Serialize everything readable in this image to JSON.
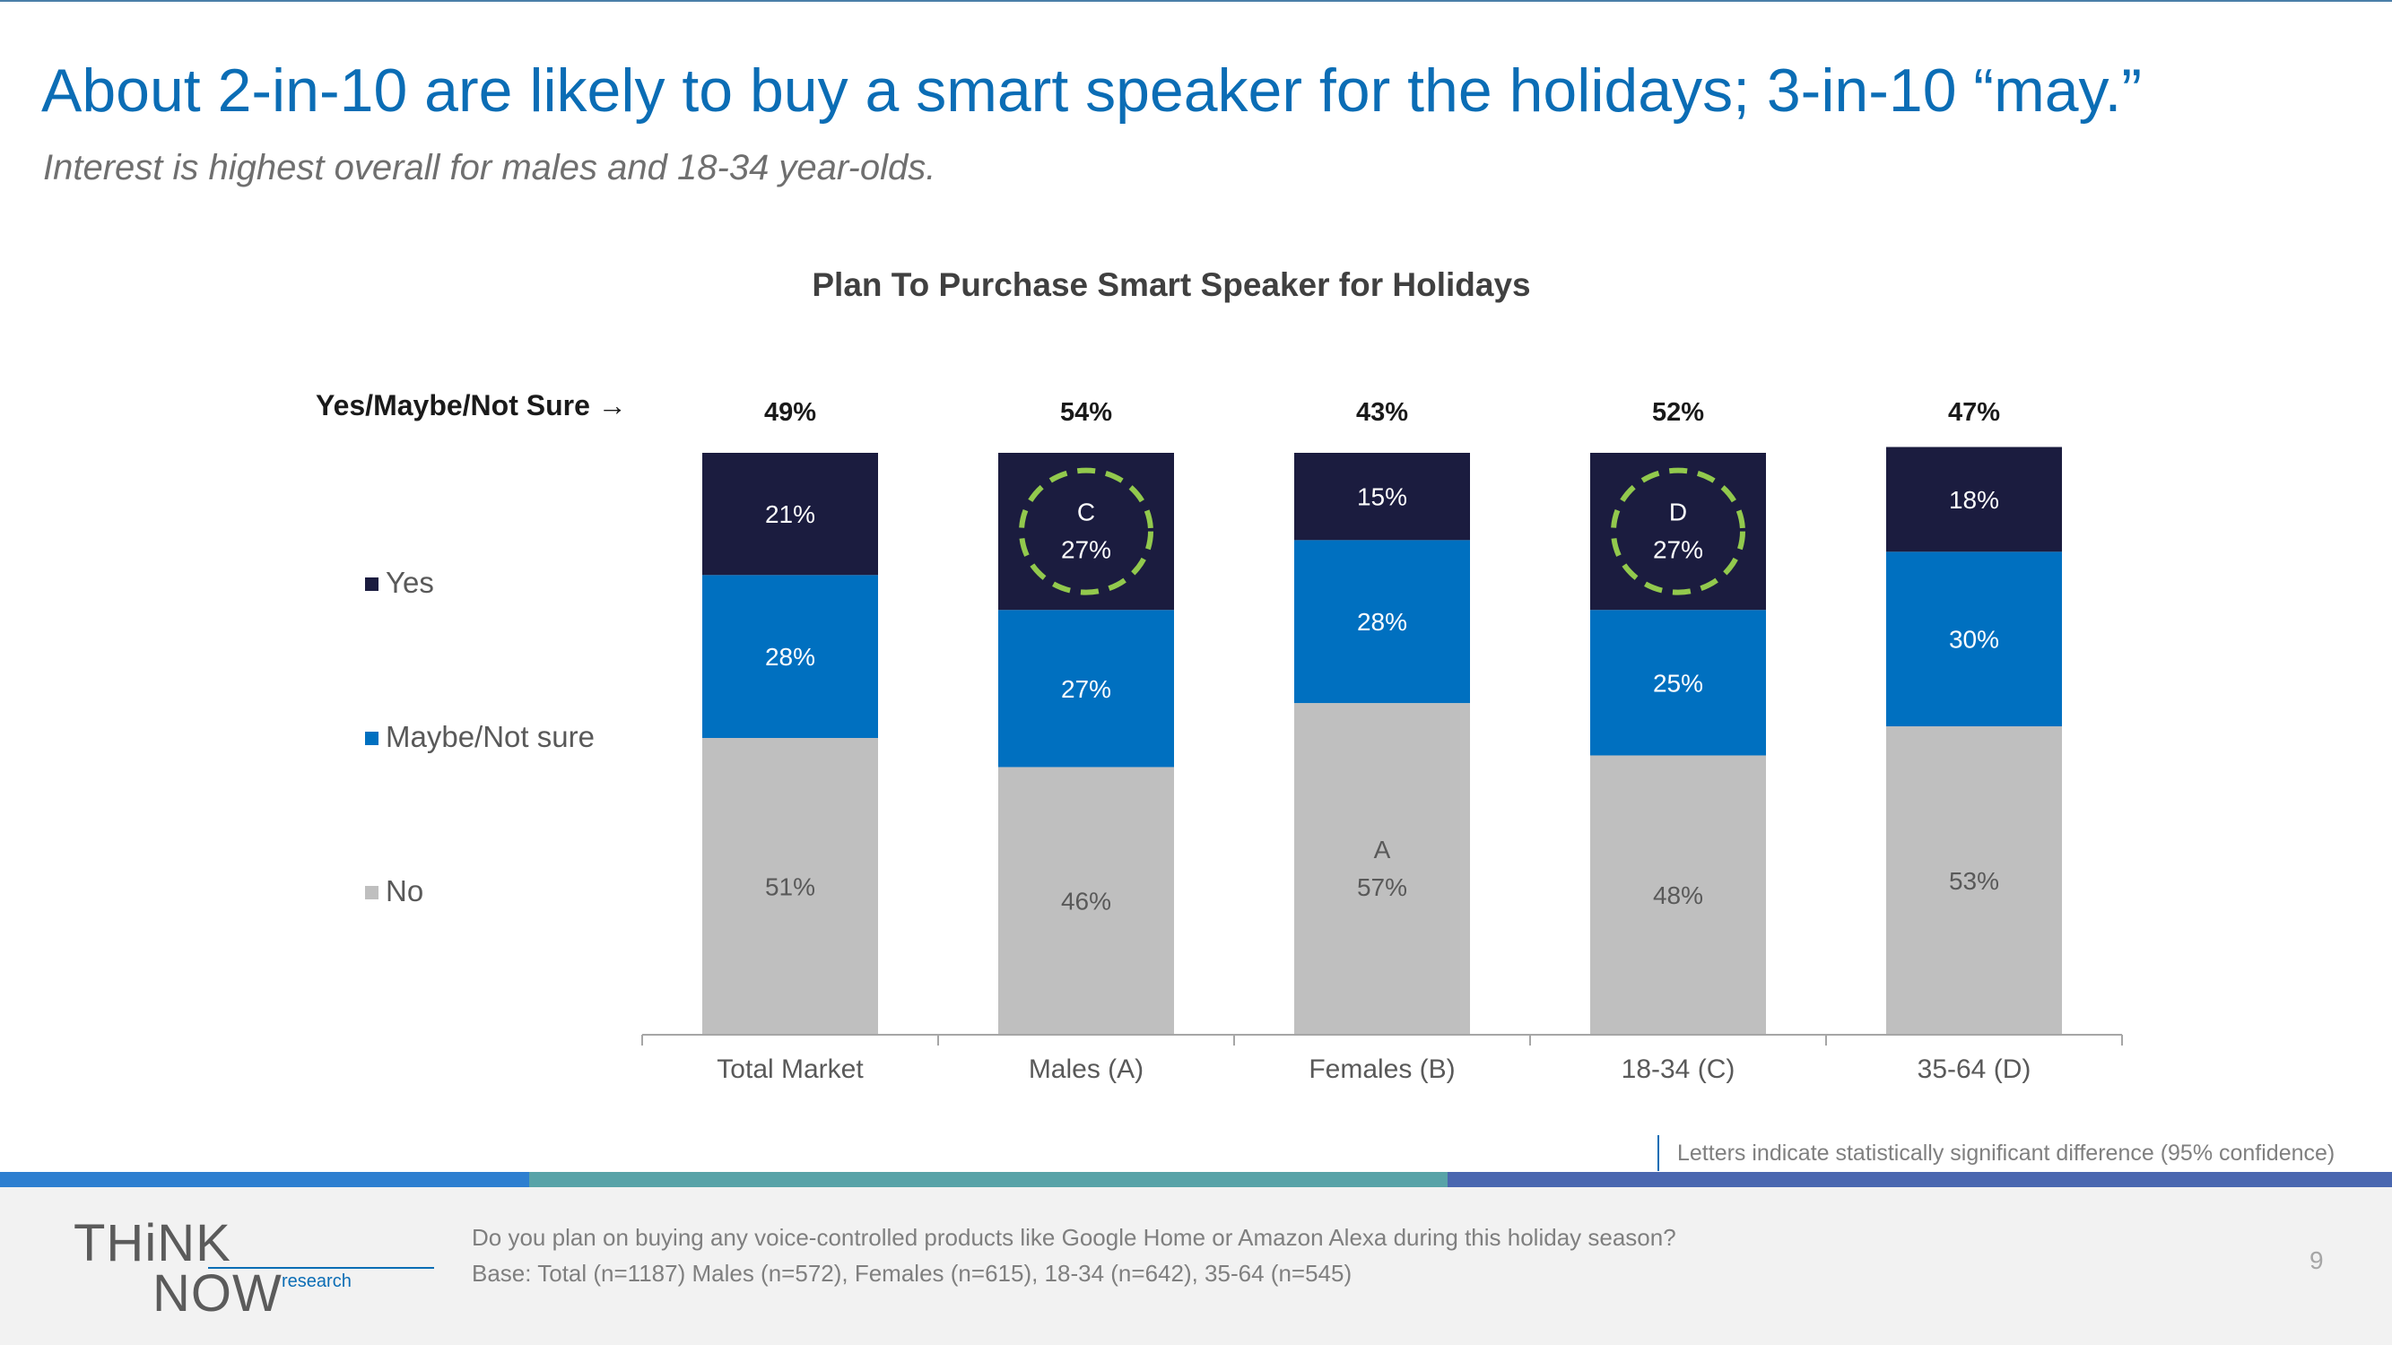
{
  "slide": {
    "title": "About 2-in-10 are likely to buy a smart speaker for the holidays; 3-in-10 “may.”",
    "subtitle": "Interest is highest overall for males and 18-34 year-olds.",
    "sig_note": "Letters indicate statistically significant difference (95% confidence)",
    "question": "Do you plan on buying any voice-controlled products like Google Home or Amazon Alexa during this holiday season?",
    "base": "Base: Total (n=1187) Males (n=572), Females (n=615), 18-34 (n=642), 35-64 (n=545)",
    "page_number": "9",
    "logo": {
      "word1": "THiNK",
      "word2": "NOW",
      "word3": "research"
    }
  },
  "colors": {
    "title": "#0b6db5",
    "yes": "#1b1c3f",
    "maybe": "#0070c0",
    "no": "#bfbfbf",
    "highlight": "#92c94d",
    "band_1": "#2e7fd0",
    "band_2": "#58a3a8",
    "band_3": "#4a67b0"
  },
  "chart_data": {
    "type": "bar",
    "stacked": true,
    "title": "Plan To Purchase Smart Speaker for Holidays",
    "ymn_label": "Yes/Maybe/Not Sure →",
    "categories": [
      "Total Market",
      "Males (A)",
      "Females (B)",
      "18-34 (C)",
      "35-64 (D)"
    ],
    "series": [
      {
        "name": "No",
        "values": [
          51,
          46,
          57,
          48,
          53
        ],
        "labels": [
          "51%",
          "46%",
          "57%",
          "48%",
          "53%"
        ],
        "sig": [
          "",
          "",
          "A",
          "",
          ""
        ]
      },
      {
        "name": "Maybe/Not sure",
        "values": [
          28,
          27,
          28,
          25,
          30
        ],
        "labels": [
          "28%",
          "27%",
          "28%",
          "25%",
          "30%"
        ],
        "sig": [
          "",
          "",
          "",
          "",
          ""
        ]
      },
      {
        "name": "Yes",
        "values": [
          21,
          27,
          15,
          27,
          18
        ],
        "labels": [
          "21%",
          "27%",
          "15%",
          "27%",
          "18%"
        ],
        "sig": [
          "",
          "C",
          "",
          "D",
          ""
        ]
      }
    ],
    "totals_yes_maybe": [
      "49%",
      "54%",
      "43%",
      "52%",
      "47%"
    ],
    "highlighted": [
      false,
      true,
      false,
      true,
      false
    ],
    "ylim": [
      0,
      100
    ],
    "legend": [
      "Yes",
      "Maybe/Not sure",
      "No"
    ],
    "legend_position": "left"
  }
}
